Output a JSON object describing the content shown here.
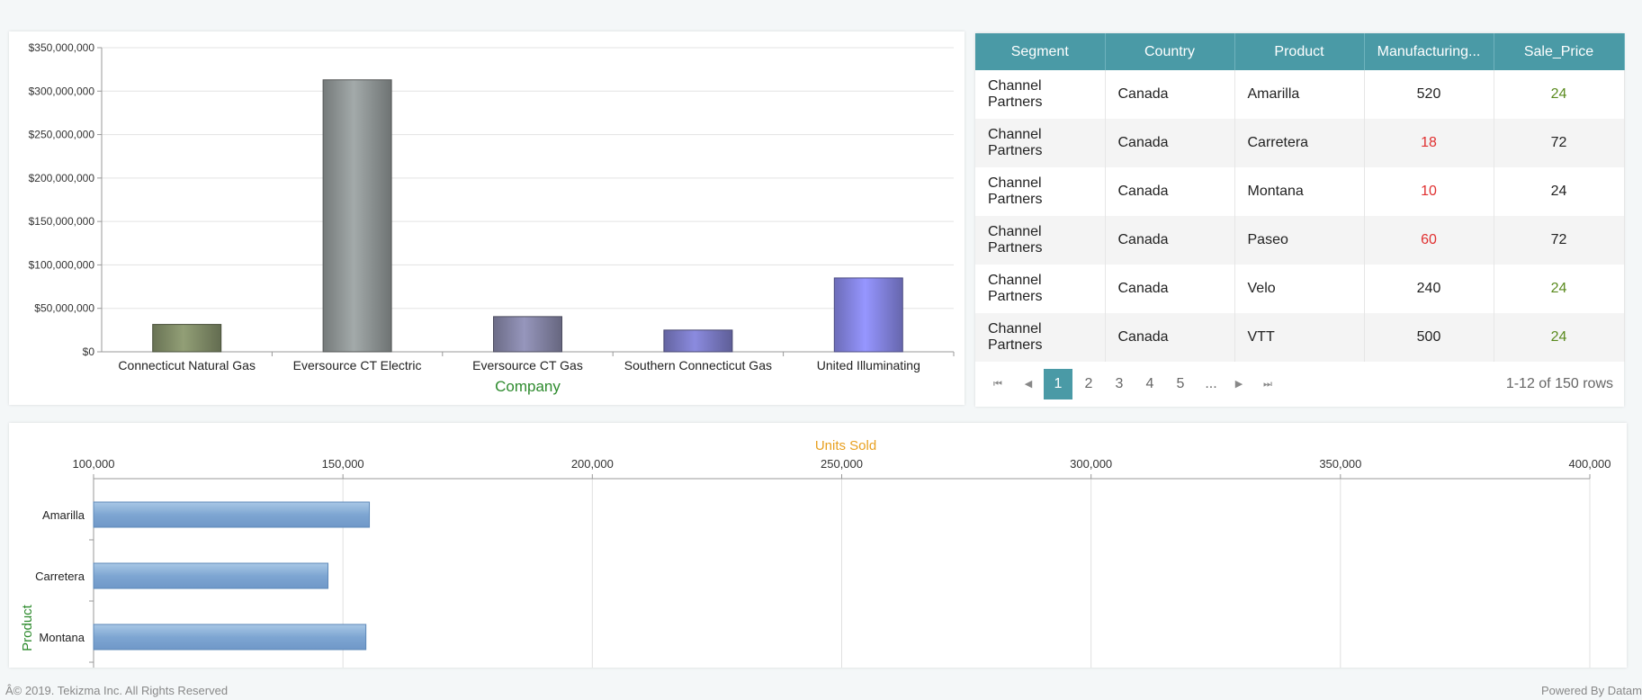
{
  "bar_chart": {
    "chart_data": {
      "type": "bar",
      "categories": [
        "Connecticut Natural Gas",
        "Eversource CT Electric",
        "Eversource CT Gas",
        "Southern Connecticut Gas",
        "United Illuminating"
      ],
      "values": [
        31500000,
        313000000,
        40500000,
        25000000,
        85000000
      ],
      "colors": [
        "#7c8764",
        "#8a9090",
        "#7f7f9f",
        "#7676bd",
        "#7f7fd8"
      ],
      "ylim": [
        0,
        350000000
      ],
      "yticks": [
        "$0",
        "$50,000,000",
        "$100,000,000",
        "$150,000,000",
        "$200,000,000",
        "$250,000,000",
        "$300,000,000",
        "$350,000,000"
      ],
      "xlabel": "Company",
      "ylabel": "",
      "title": ""
    }
  },
  "grid": {
    "columns": [
      "Segment",
      "Country",
      "Product",
      "Manufacturing...",
      "Sale_Price"
    ],
    "rows": [
      {
        "segment": "Channel Partners",
        "country": "Canada",
        "product": "Amarilla",
        "manufacturing": "520",
        "sale_price": "24"
      },
      {
        "segment": "Channel Partners",
        "country": "Canada",
        "product": "Carretera",
        "manufacturing": "18",
        "sale_price": "72"
      },
      {
        "segment": "Channel Partners",
        "country": "Canada",
        "product": "Montana",
        "manufacturing": "10",
        "sale_price": "24"
      },
      {
        "segment": "Channel Partners",
        "country": "Canada",
        "product": "Paseo",
        "manufacturing": "60",
        "sale_price": "72"
      },
      {
        "segment": "Channel Partners",
        "country": "Canada",
        "product": "Velo",
        "manufacturing": "240",
        "sale_price": "24"
      },
      {
        "segment": "Channel Partners",
        "country": "Canada",
        "product": "VTT",
        "manufacturing": "500",
        "sale_price": "24"
      }
    ],
    "pager": {
      "pages": [
        "1",
        "2",
        "3",
        "4",
        "5",
        "..."
      ],
      "current": "1",
      "info": "1-12 of 150 rows",
      "icons": [
        "first-page-icon",
        "prev-page-icon",
        "next-page-icon",
        "last-page-icon"
      ]
    }
  },
  "hbar_chart": {
    "chart_data": {
      "type": "bar",
      "orientation": "horizontal",
      "categories": [
        "Amarilla",
        "Carretera",
        "Montana"
      ],
      "values": [
        155300,
        147000,
        154600
      ],
      "xlim": [
        100000,
        400000
      ],
      "xticks": [
        "100,000",
        "150,000",
        "200,000",
        "250,000",
        "300,000",
        "350,000",
        "400,000"
      ],
      "xlabel": "Units Sold",
      "ylabel": "Product",
      "title": ""
    }
  },
  "colors": {
    "header_teal": "#4a9aa6",
    "axis_title_green": "#2e8b2e",
    "axis_title_orange": "#e8a020",
    "low_value_red": "#e03030",
    "price_green": "#5a8a1e"
  },
  "footer": {
    "copyright": "Â© 2019. Tekizma Inc. All Rights Reserved",
    "powered_by": "Powered By Datam"
  }
}
